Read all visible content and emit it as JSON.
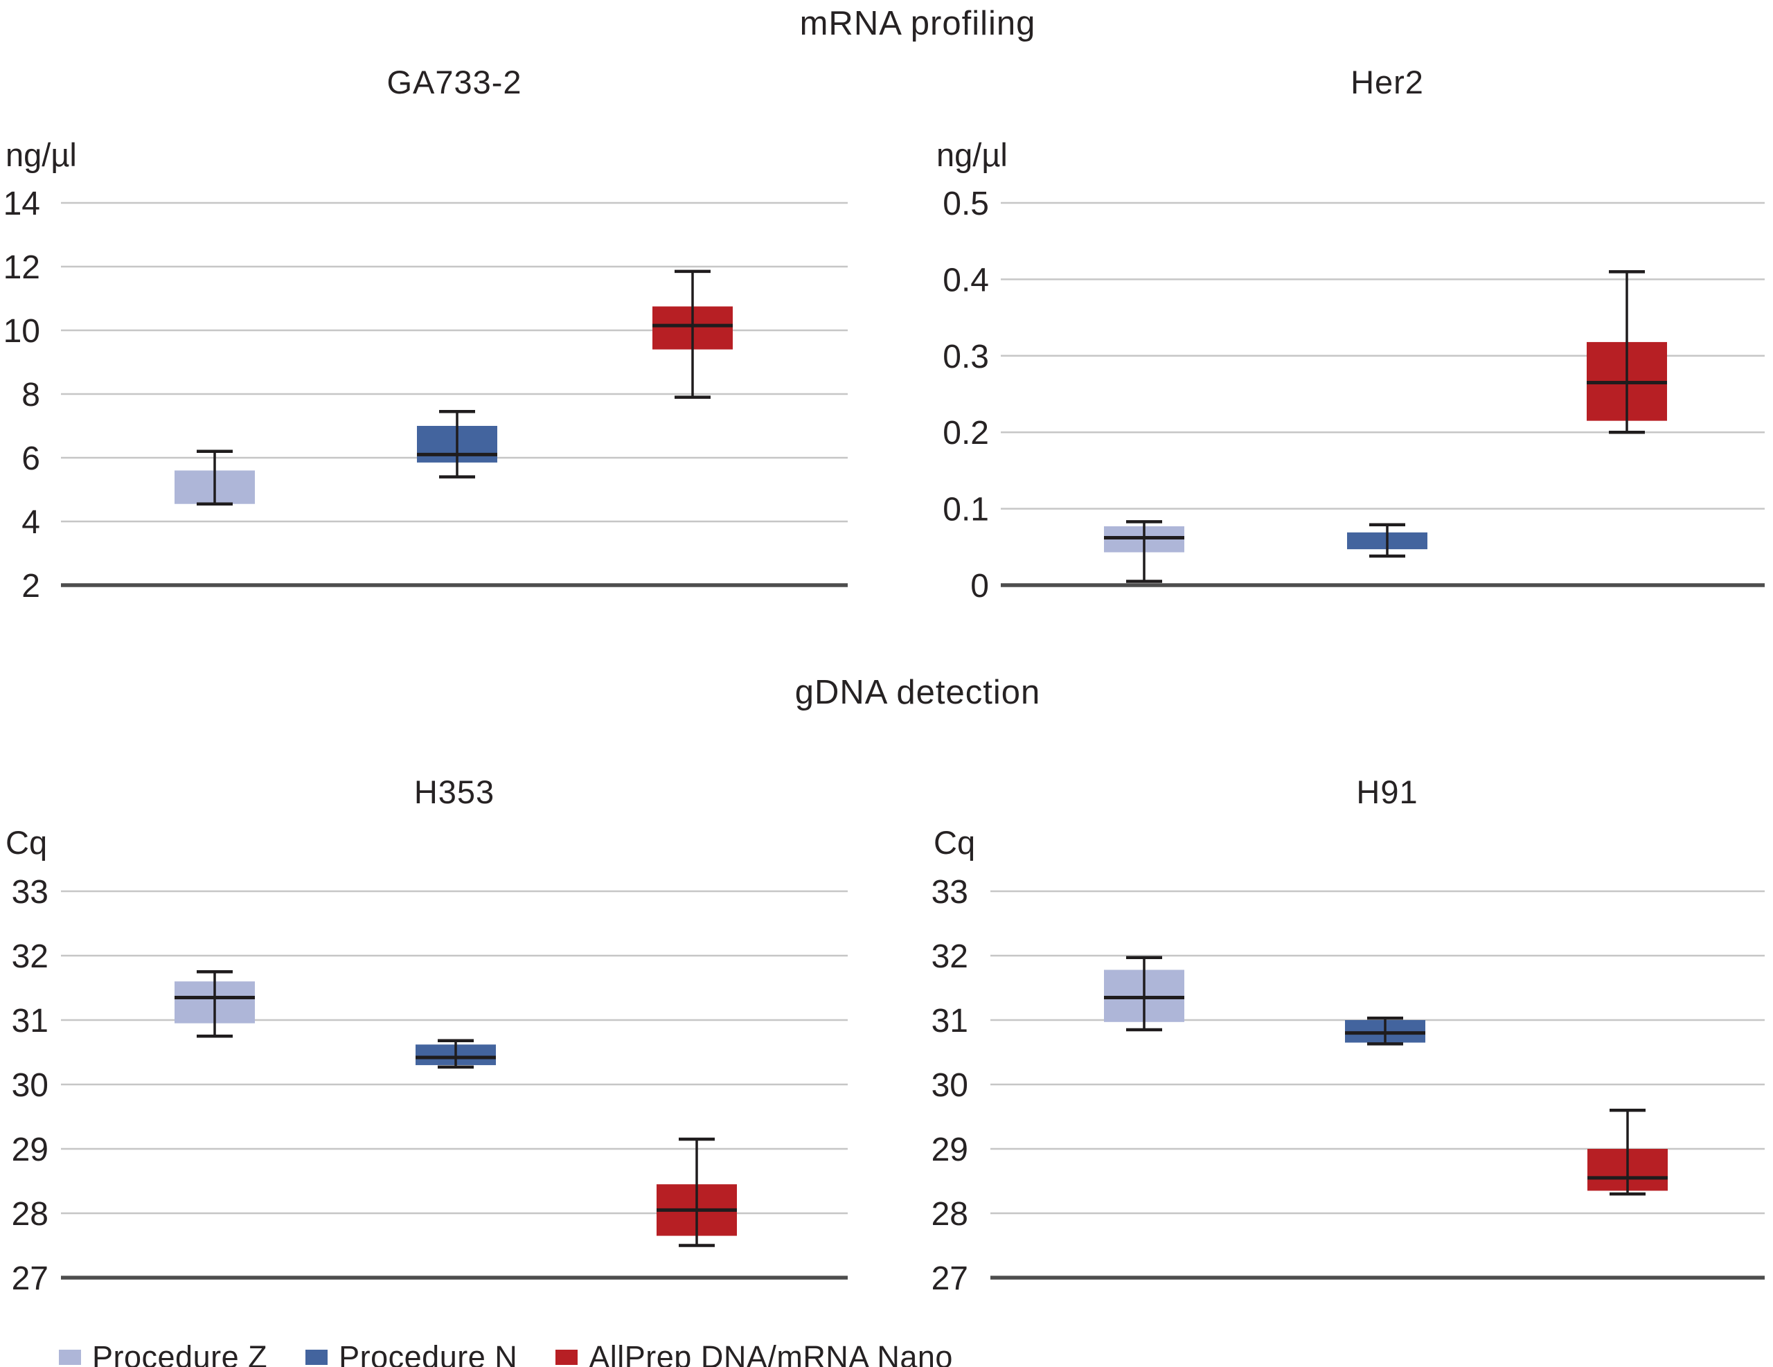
{
  "titles": {
    "row1": "mRNA profiling",
    "row2": "gDNA detection"
  },
  "legend": [
    {
      "label": "Procedure Z",
      "color": "#aeb6d8"
    },
    {
      "label": "Procedure N",
      "color": "#43649e"
    },
    {
      "label": "AllPrep DNA/mRNA Nano",
      "color": "#b71f24"
    }
  ],
  "colors": {
    "ink": "#262223",
    "gridline": "#c6c6c6",
    "axis": "#4d4d4d",
    "whisker": "#1f1c1d",
    "procedure_z": "#aeb6d8",
    "procedure_n": "#43649e",
    "allprep": "#b71f24"
  },
  "chart_data": [
    {
      "type": "box",
      "id": "ga733-2",
      "group": "mRNA profiling",
      "title": "GA733-2",
      "unit": "ng/µl",
      "ylim": [
        2,
        14
      ],
      "grid": true,
      "yticks": [
        {
          "v": 2,
          "label": "2"
        },
        {
          "v": 4,
          "label": "4"
        },
        {
          "v": 6,
          "label": "6"
        },
        {
          "v": 8,
          "label": "8"
        },
        {
          "v": 10,
          "label": "10"
        },
        {
          "v": 12,
          "label": "12"
        },
        {
          "v": 14,
          "label": "14"
        }
      ],
      "series": [
        {
          "name": "Procedure Z",
          "color": "#aeb6d8",
          "whisker_low": 4.55,
          "q1": 4.55,
          "median": null,
          "q3": 5.6,
          "whisker_high": 6.2
        },
        {
          "name": "Procedure N",
          "color": "#43649e",
          "whisker_low": 5.4,
          "q1": 5.85,
          "median": 6.1,
          "q3": 7.0,
          "whisker_high": 7.45
        },
        {
          "name": "AllPrep DNA/mRNA Nano",
          "color": "#b71f24",
          "whisker_low": 7.9,
          "q1": 9.4,
          "median": 10.15,
          "q3": 10.75,
          "whisker_high": 11.85
        }
      ]
    },
    {
      "type": "box",
      "id": "her2",
      "group": "mRNA profiling",
      "title": "Her2",
      "unit": "ng/µl",
      "ylim": [
        0,
        0.5
      ],
      "grid": true,
      "yticks": [
        {
          "v": 0,
          "label": "0"
        },
        {
          "v": 0.1,
          "label": "0.1"
        },
        {
          "v": 0.2,
          "label": "0.2"
        },
        {
          "v": 0.3,
          "label": "0.3"
        },
        {
          "v": 0.4,
          "label": "0.4"
        },
        {
          "v": 0.5,
          "label": "0.5"
        }
      ],
      "series": [
        {
          "name": "Procedure Z",
          "color": "#aeb6d8",
          "whisker_low": 0.005,
          "q1": 0.043,
          "median": 0.062,
          "q3": 0.077,
          "whisker_high": 0.083
        },
        {
          "name": "Procedure N",
          "color": "#43649e",
          "whisker_low": 0.038,
          "q1": 0.047,
          "median": null,
          "q3": 0.069,
          "whisker_high": 0.079
        },
        {
          "name": "AllPrep DNA/mRNA Nano",
          "color": "#b71f24",
          "whisker_low": 0.2,
          "q1": 0.215,
          "median": 0.265,
          "q3": 0.318,
          "whisker_high": 0.41
        }
      ]
    },
    {
      "type": "box",
      "id": "h353",
      "group": "gDNA detection",
      "title": "H353",
      "unit": "Cq",
      "ylim": [
        27,
        33
      ],
      "grid": true,
      "yticks": [
        {
          "v": 27,
          "label": "27"
        },
        {
          "v": 28,
          "label": "28"
        },
        {
          "v": 29,
          "label": "29"
        },
        {
          "v": 30,
          "label": "30"
        },
        {
          "v": 31,
          "label": "31"
        },
        {
          "v": 32,
          "label": "32"
        },
        {
          "v": 33,
          "label": "33"
        }
      ],
      "series": [
        {
          "name": "Procedure Z",
          "color": "#aeb6d8",
          "whisker_low": 30.75,
          "q1": 30.95,
          "median": 31.35,
          "q3": 31.6,
          "whisker_high": 31.75
        },
        {
          "name": "Procedure N",
          "color": "#43649e",
          "whisker_low": 30.27,
          "q1": 30.3,
          "median": 30.42,
          "q3": 30.62,
          "whisker_high": 30.68
        },
        {
          "name": "AllPrep DNA/mRNA Nano",
          "color": "#b71f24",
          "whisker_low": 27.5,
          "q1": 27.65,
          "median": 28.05,
          "q3": 28.45,
          "whisker_high": 29.15
        }
      ]
    },
    {
      "type": "box",
      "id": "h91",
      "group": "gDNA detection",
      "title": "H91",
      "unit": "Cq",
      "ylim": [
        27,
        33
      ],
      "grid": true,
      "yticks": [
        {
          "v": 27,
          "label": "27"
        },
        {
          "v": 28,
          "label": "28"
        },
        {
          "v": 29,
          "label": "29"
        },
        {
          "v": 30,
          "label": "30"
        },
        {
          "v": 31,
          "label": "31"
        },
        {
          "v": 32,
          "label": "32"
        },
        {
          "v": 33,
          "label": "33"
        }
      ],
      "series": [
        {
          "name": "Procedure Z",
          "color": "#aeb6d8",
          "whisker_low": 30.85,
          "q1": 30.97,
          "median": 31.35,
          "q3": 31.78,
          "whisker_high": 31.97
        },
        {
          "name": "Procedure N",
          "color": "#43649e",
          "whisker_low": 30.63,
          "q1": 30.65,
          "median": 30.8,
          "q3": 31.0,
          "whisker_high": 31.03
        },
        {
          "name": "AllPrep DNA/mRNA Nano",
          "color": "#b71f24",
          "whisker_low": 28.3,
          "q1": 28.35,
          "median": 28.55,
          "q3": 29.0,
          "whisker_high": 29.6
        }
      ]
    }
  ]
}
